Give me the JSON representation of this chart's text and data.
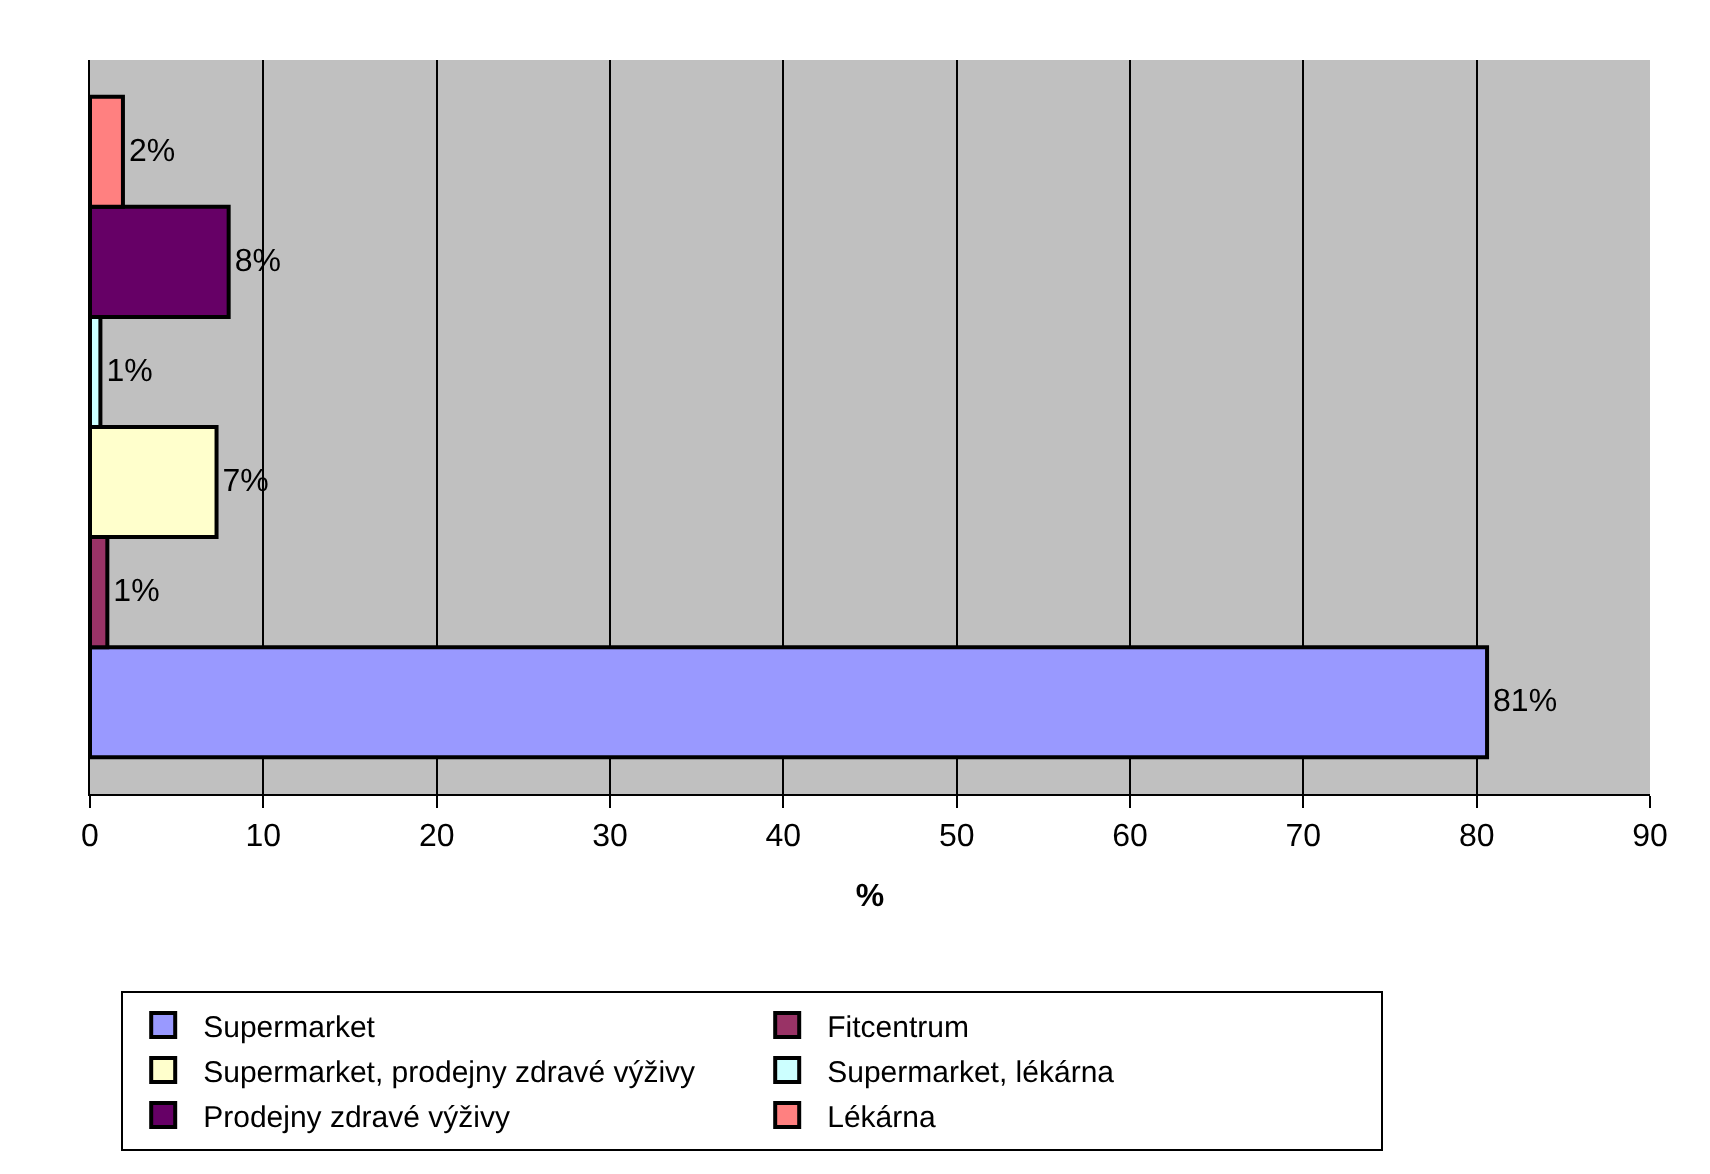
{
  "chart_data": {
    "type": "bar",
    "orientation": "horizontal",
    "xlabel": "%",
    "categories": [
      null
    ],
    "series": [
      {
        "name": "Supermarket",
        "color": "#9999ff",
        "values": [
          80.6
        ],
        "value_labels": [
          "81%"
        ]
      },
      {
        "name": "Fitcentrum",
        "color": "#993366",
        "values": [
          1.0
        ],
        "value_labels": [
          "1%"
        ]
      },
      {
        "name": "Supermarket, prodejny zdravé výživy",
        "color": "#ffffcc",
        "values": [
          7.3
        ],
        "value_labels": [
          "7%"
        ]
      },
      {
        "name": "Supermarket, lékárna",
        "color": "#ccffff",
        "values": [
          0.6
        ],
        "value_labels": [
          "1%"
        ]
      },
      {
        "name": "Prodejny zdravé výživy",
        "color": "#660066",
        "values": [
          8.0
        ],
        "value_labels": [
          "8%"
        ]
      },
      {
        "name": "Lékárna",
        "color": "#ff8080",
        "values": [
          1.9
        ],
        "value_labels": [
          "2%"
        ]
      }
    ],
    "xlim": [
      0,
      90
    ],
    "xticks": [
      0,
      10,
      20,
      30,
      40,
      50,
      60,
      70,
      80,
      90
    ],
    "grid": "x",
    "legend": "bottom"
  }
}
